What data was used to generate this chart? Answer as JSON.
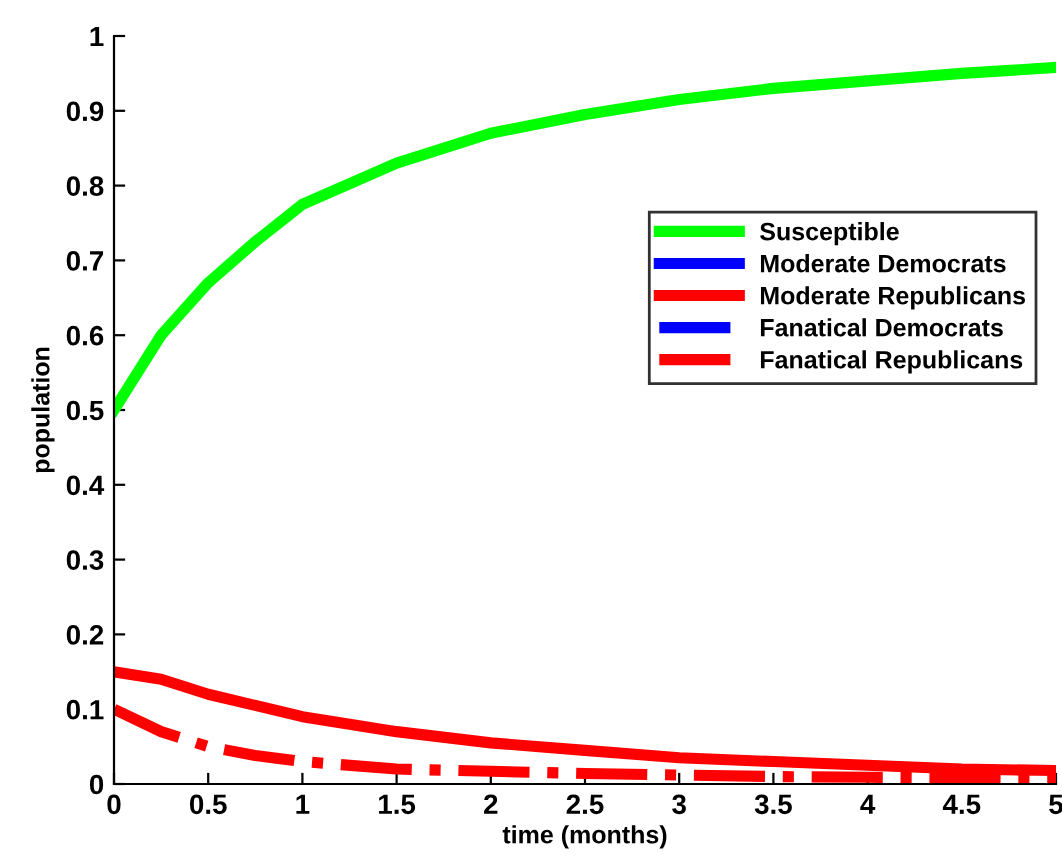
{
  "chart_data": {
    "type": "line",
    "xlabel": "time (months)",
    "ylabel": "population",
    "x": [
      0,
      0.25,
      0.5,
      0.75,
      1,
      1.5,
      2,
      2.5,
      3,
      3.5,
      4,
      4.5,
      5
    ],
    "series": [
      {
        "name": "Susceptible",
        "color": "#00ff00",
        "line_style": "solid",
        "values": [
          0.5,
          0.6,
          0.67,
          0.725,
          0.775,
          0.83,
          0.87,
          0.895,
          0.915,
          0.93,
          0.94,
          0.95,
          0.958
        ]
      },
      {
        "name": "Moderate Democrats",
        "color": "#0000ff",
        "line_style": "solid",
        "values": [
          null,
          null,
          null,
          null,
          null,
          null,
          null,
          null,
          null,
          null,
          null,
          null,
          null
        ]
      },
      {
        "name": "Moderate Republicans",
        "color": "#ff0000",
        "line_style": "solid",
        "values": [
          0.15,
          0.14,
          0.12,
          0.105,
          0.09,
          0.07,
          0.055,
          0.045,
          0.035,
          0.03,
          0.025,
          0.02,
          0.018
        ]
      },
      {
        "name": "Fanatical Democrats",
        "color": "#0000ff",
        "line_style": "dashdot",
        "values": [
          null,
          null,
          null,
          null,
          null,
          null,
          null,
          null,
          null,
          null,
          null,
          null,
          null
        ]
      },
      {
        "name": "Fanatical Republicans",
        "color": "#ff0000",
        "line_style": "dashdot",
        "values": [
          0.1,
          0.07,
          0.05,
          0.038,
          0.03,
          0.02,
          0.017,
          0.014,
          0.012,
          0.01,
          0.009,
          0.008,
          0.007
        ]
      }
    ],
    "xlim": [
      0,
      5
    ],
    "xticks": [
      0,
      0.5,
      1,
      1.5,
      2,
      2.5,
      3,
      3.5,
      4,
      4.5,
      5
    ],
    "ylim": [
      0,
      1
    ],
    "yticks": [
      0,
      0.1,
      0.2,
      0.3,
      0.4,
      0.5,
      0.6,
      0.7,
      0.8,
      0.9,
      1
    ],
    "grid": false,
    "legend": "right"
  }
}
